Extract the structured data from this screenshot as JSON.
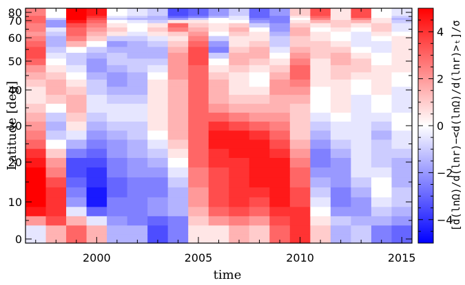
{
  "chart_data": {
    "type": "heatmap",
    "title": "",
    "xlabel": "time",
    "ylabel": "Latitude [deg]",
    "colorbar_label": "[d(lnΩ)/d(lnr)−<d(lnΩ)/d(lnr)>ₜ]/σ",
    "x_ticks": [
      "2000",
      "2005",
      "2010",
      "2015"
    ],
    "x_tick_values": [
      2000,
      2005,
      2010,
      2015
    ],
    "y_ticks": [
      "0",
      "10",
      "20",
      "30",
      "40",
      "50",
      "60",
      "70",
      "80"
    ],
    "y_tick_values": [
      0,
      10,
      20,
      30,
      40,
      50,
      60,
      70,
      80
    ],
    "colorbar_ticks": [
      "4",
      "2",
      "0",
      "−2",
      "−4"
    ],
    "colorbar_tick_values": [
      4,
      2,
      0,
      -2,
      -4
    ],
    "xlim": [
      1996.5,
      2015.5
    ],
    "ylim": [
      -1,
      81
    ],
    "vlim": [
      -5,
      5
    ],
    "y_scale": "sqrt-like (latitude axis non-uniform)",
    "colormap": {
      "low": "#0000ff",
      "mid": "#ffffff",
      "high": "#ff0000"
    },
    "x": [
      1997,
      1998,
      1999,
      2000,
      2001,
      2002,
      2003,
      2004,
      2005,
      2006,
      2007,
      2008,
      2009,
      2010,
      2011,
      2012,
      2013,
      2014,
      2015
    ],
    "y": [
      0,
      2.5,
      5,
      7.5,
      10,
      12.5,
      15,
      17.5,
      20,
      22.5,
      25,
      27.5,
      30,
      32.5,
      35,
      37.5,
      40,
      42.5,
      45,
      47.5,
      50,
      52.5,
      55,
      57.5,
      60,
      62.5,
      65,
      67.5,
      70,
      72.5,
      75,
      77.5,
      80
    ],
    "z": [
      [
        -0.5,
        1.5,
        3.0,
        1.5,
        -1.5,
        -1.5,
        -3.5,
        -2.5,
        0.5,
        0.5,
        1.5,
        1.0,
        3.0,
        4.0,
        1.0,
        -1.5,
        -1.0,
        -2.5,
        -3.0
      ],
      [
        -0.5,
        1.5,
        3.0,
        1.5,
        -1.5,
        -1.5,
        -3.5,
        -2.5,
        0.5,
        0.5,
        1.5,
        1.0,
        3.0,
        4.0,
        1.0,
        -1.5,
        -1.0,
        -2.5,
        -3.0
      ],
      [
        2.0,
        3.5,
        1.5,
        -0.5,
        -2.0,
        -2.5,
        -3.0,
        -2.5,
        1.0,
        2.0,
        2.5,
        2.0,
        3.5,
        4.0,
        0.5,
        -1.0,
        -1.5,
        -1.5,
        -2.0
      ],
      [
        4.5,
        4.0,
        -0.5,
        -3.0,
        -2.5,
        -2.5,
        -2.0,
        -1.5,
        1.5,
        3.0,
        3.5,
        3.0,
        4.0,
        4.0,
        0.0,
        -2.0,
        -2.0,
        -1.0,
        -1.5
      ],
      [
        5.0,
        4.0,
        -2.0,
        -4.5,
        -2.5,
        -2.5,
        -2.0,
        -1.5,
        2.0,
        3.5,
        4.0,
        3.5,
        4.5,
        3.5,
        -0.5,
        -2.5,
        -2.0,
        -0.5,
        -1.0
      ],
      [
        5.0,
        4.0,
        -2.5,
        -4.5,
        -3.0,
        -2.5,
        -2.5,
        -1.5,
        2.0,
        3.5,
        4.0,
        4.0,
        4.5,
        3.5,
        -1.0,
        -2.5,
        -1.5,
        0.0,
        -1.0
      ],
      [
        5.0,
        3.5,
        -3.0,
        -4.0,
        -3.0,
        -2.5,
        -2.5,
        -1.0,
        2.5,
        3.5,
        4.0,
        4.5,
        4.5,
        3.0,
        -1.5,
        -2.0,
        -1.0,
        0.0,
        -1.5
      ],
      [
        5.0,
        2.5,
        -3.5,
        -4.0,
        -2.5,
        -2.0,
        -2.0,
        -0.5,
        2.5,
        3.5,
        4.0,
        4.5,
        4.5,
        3.0,
        -2.0,
        -2.0,
        -0.5,
        -0.5,
        -1.5
      ],
      [
        4.5,
        2.0,
        -3.5,
        -3.5,
        -2.5,
        -2.0,
        -1.5,
        0.0,
        3.0,
        4.0,
        4.0,
        4.5,
        4.5,
        2.5,
        -2.5,
        -2.0,
        -0.5,
        -1.0,
        -1.5
      ],
      [
        4.0,
        1.0,
        -2.5,
        -3.0,
        -2.0,
        -1.5,
        -1.0,
        0.5,
        3.0,
        4.0,
        4.5,
        4.5,
        4.0,
        2.0,
        -2.5,
        -1.5,
        -0.5,
        -1.0,
        -1.0
      ],
      [
        3.0,
        0.0,
        -1.5,
        -2.5,
        -2.0,
        -1.5,
        -0.5,
        1.0,
        3.0,
        4.5,
        4.5,
        4.5,
        3.5,
        1.5,
        -2.0,
        -1.0,
        -0.5,
        -1.0,
        -0.5
      ],
      [
        2.5,
        -1.0,
        -0.5,
        -2.0,
        -1.5,
        -1.0,
        0.0,
        1.5,
        3.0,
        4.5,
        4.5,
        4.0,
        3.0,
        1.0,
        -1.5,
        -0.5,
        -0.5,
        -1.5,
        -0.5
      ],
      [
        2.0,
        -1.5,
        0.5,
        -1.5,
        -1.0,
        -1.0,
        0.5,
        1.5,
        3.0,
        4.0,
        3.5,
        3.0,
        2.5,
        1.0,
        -1.0,
        -0.5,
        -0.5,
        -1.0,
        0.0
      ],
      [
        1.5,
        -1.0,
        1.0,
        -1.0,
        -0.5,
        -0.5,
        0.5,
        1.5,
        3.0,
        3.0,
        2.5,
        2.0,
        2.0,
        1.0,
        -0.5,
        0.0,
        -0.5,
        -0.5,
        0.0
      ],
      [
        1.0,
        0.0,
        1.5,
        -0.5,
        -0.5,
        -0.5,
        0.5,
        1.5,
        3.0,
        2.0,
        1.5,
        1.5,
        1.5,
        1.0,
        0.0,
        0.5,
        -0.5,
        0.0,
        -0.5
      ],
      [
        0.5,
        1.0,
        1.5,
        -0.5,
        -1.0,
        -1.0,
        0.5,
        1.5,
        3.0,
        1.5,
        1.0,
        1.0,
        1.5,
        1.5,
        0.0,
        0.5,
        -0.5,
        0.0,
        -0.5
      ],
      [
        0.5,
        1.5,
        1.0,
        -1.0,
        -1.5,
        -1.5,
        0.5,
        1.5,
        3.0,
        1.5,
        0.5,
        0.5,
        2.0,
        2.0,
        0.0,
        0.5,
        0.0,
        0.5,
        -0.5
      ],
      [
        1.0,
        1.5,
        0.5,
        -1.0,
        -2.0,
        -1.5,
        0.5,
        1.5,
        3.0,
        1.5,
        0.5,
        0.0,
        2.0,
        2.5,
        0.5,
        0.5,
        0.0,
        0.5,
        0.0
      ],
      [
        1.5,
        1.0,
        0.0,
        -1.5,
        -2.0,
        -1.5,
        0.0,
        2.0,
        3.0,
        1.0,
        0.5,
        0.0,
        1.5,
        3.0,
        0.5,
        1.0,
        0.5,
        0.5,
        0.0
      ],
      [
        2.0,
        0.5,
        -0.5,
        -2.0,
        -1.5,
        -1.0,
        -0.5,
        2.0,
        3.0,
        0.5,
        1.0,
        0.5,
        1.0,
        3.0,
        0.5,
        1.0,
        1.0,
        0.5,
        0.5
      ],
      [
        3.0,
        0.0,
        -1.0,
        -2.0,
        -1.0,
        -1.0,
        -1.0,
        2.0,
        3.5,
        0.0,
        1.5,
        1.0,
        0.5,
        2.5,
        0.5,
        1.5,
        1.0,
        0.0,
        0.5
      ],
      [
        3.5,
        -0.5,
        -1.0,
        -1.5,
        -1.0,
        -1.5,
        -1.5,
        2.0,
        3.5,
        -1.0,
        1.5,
        1.5,
        0.0,
        2.0,
        1.0,
        1.5,
        0.5,
        0.0,
        0.5
      ],
      [
        3.5,
        -1.0,
        0.0,
        -1.0,
        -1.5,
        -1.5,
        -1.5,
        1.5,
        3.5,
        -2.5,
        1.0,
        1.5,
        -0.5,
        1.5,
        1.0,
        1.0,
        0.0,
        -0.5,
        0.5
      ],
      [
        3.0,
        -1.5,
        1.5,
        0.0,
        -2.0,
        -1.5,
        -1.0,
        1.0,
        3.0,
        -2.0,
        0.5,
        1.0,
        -1.0,
        1.0,
        1.0,
        0.5,
        -0.5,
        -0.5,
        0.5
      ],
      [
        2.5,
        -1.5,
        2.5,
        1.0,
        -1.0,
        -1.0,
        -0.5,
        0.5,
        2.5,
        -1.0,
        0.5,
        0.5,
        -1.0,
        1.0,
        0.5,
        0.0,
        -0.5,
        0.0,
        0.5
      ],
      [
        2.0,
        -1.0,
        3.0,
        1.5,
        0.5,
        -0.5,
        0.5,
        1.0,
        2.0,
        0.0,
        1.0,
        0.5,
        -1.5,
        1.5,
        0.5,
        0.0,
        -0.5,
        0.5,
        0.0
      ],
      [
        2.5,
        -0.5,
        3.0,
        2.0,
        1.0,
        0.0,
        1.0,
        2.5,
        1.5,
        0.5,
        1.5,
        0.0,
        -2.0,
        1.5,
        0.0,
        0.5,
        0.0,
        1.0,
        -0.5
      ],
      [
        2.5,
        -2.0,
        3.5,
        2.5,
        0.5,
        0.0,
        0.5,
        3.0,
        1.0,
        0.5,
        1.0,
        -1.0,
        -2.0,
        1.0,
        0.5,
        1.0,
        0.5,
        1.0,
        -0.5
      ],
      [
        3.0,
        -2.0,
        4.5,
        3.0,
        0.0,
        -0.5,
        -1.0,
        0.5,
        0.5,
        0.0,
        0.0,
        -2.0,
        -2.5,
        0.5,
        1.5,
        1.0,
        1.5,
        0.5,
        -1.0
      ],
      [
        3.0,
        -1.0,
        5.0,
        3.5,
        -1.0,
        -1.5,
        -1.5,
        -2.0,
        -1.0,
        0.0,
        -0.5,
        -2.5,
        -2.5,
        0.0,
        2.5,
        0.5,
        2.5,
        0.5,
        -1.5
      ],
      [
        3.0,
        0.0,
        5.0,
        4.0,
        -0.5,
        -1.0,
        -1.5,
        -3.0,
        -2.5,
        -1.5,
        -0.5,
        -3.0,
        -2.5,
        0.5,
        3.0,
        0.5,
        3.5,
        0.0,
        -1.0
      ],
      [
        2.5,
        0.0,
        5.0,
        4.5,
        0.0,
        -0.5,
        -1.0,
        -3.5,
        -3.0,
        -2.0,
        -1.0,
        -3.0,
        -2.0,
        1.0,
        3.5,
        0.5,
        3.5,
        0.0,
        -0.5
      ],
      [
        2.5,
        0.0,
        5.0,
        4.5,
        0.0,
        -0.5,
        -1.0,
        -3.5,
        -3.0,
        -2.0,
        -1.0,
        -3.0,
        -2.0,
        1.0,
        3.5,
        0.5,
        3.5,
        0.0,
        -0.5
      ]
    ]
  }
}
